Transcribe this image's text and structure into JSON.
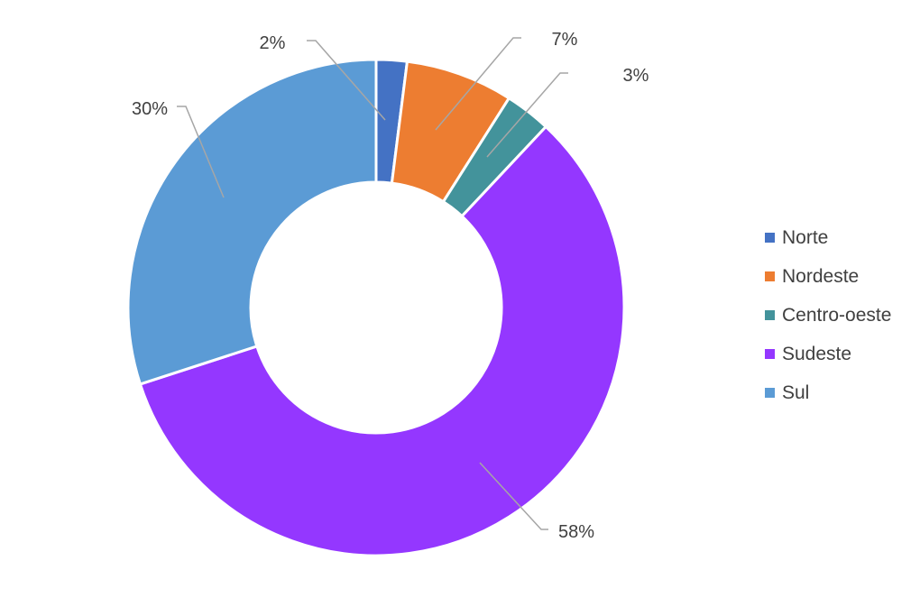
{
  "chart_data": {
    "type": "pie",
    "donut": true,
    "title": "",
    "legend_position": "right",
    "slices": [
      {
        "name": "Norte",
        "value": 2,
        "label": "2%",
        "color": "#4472c4"
      },
      {
        "name": "Nordeste",
        "value": 7,
        "label": "7%",
        "color": "#ed7d31"
      },
      {
        "name": "Centro-oeste",
        "value": 3,
        "label": "3%",
        "color": "#43939b"
      },
      {
        "name": "Sudeste",
        "value": 58,
        "label": "58%",
        "color": "#9437ff"
      },
      {
        "name": "Sul",
        "value": 30,
        "label": "30%",
        "color": "#5b9bd5"
      }
    ]
  }
}
